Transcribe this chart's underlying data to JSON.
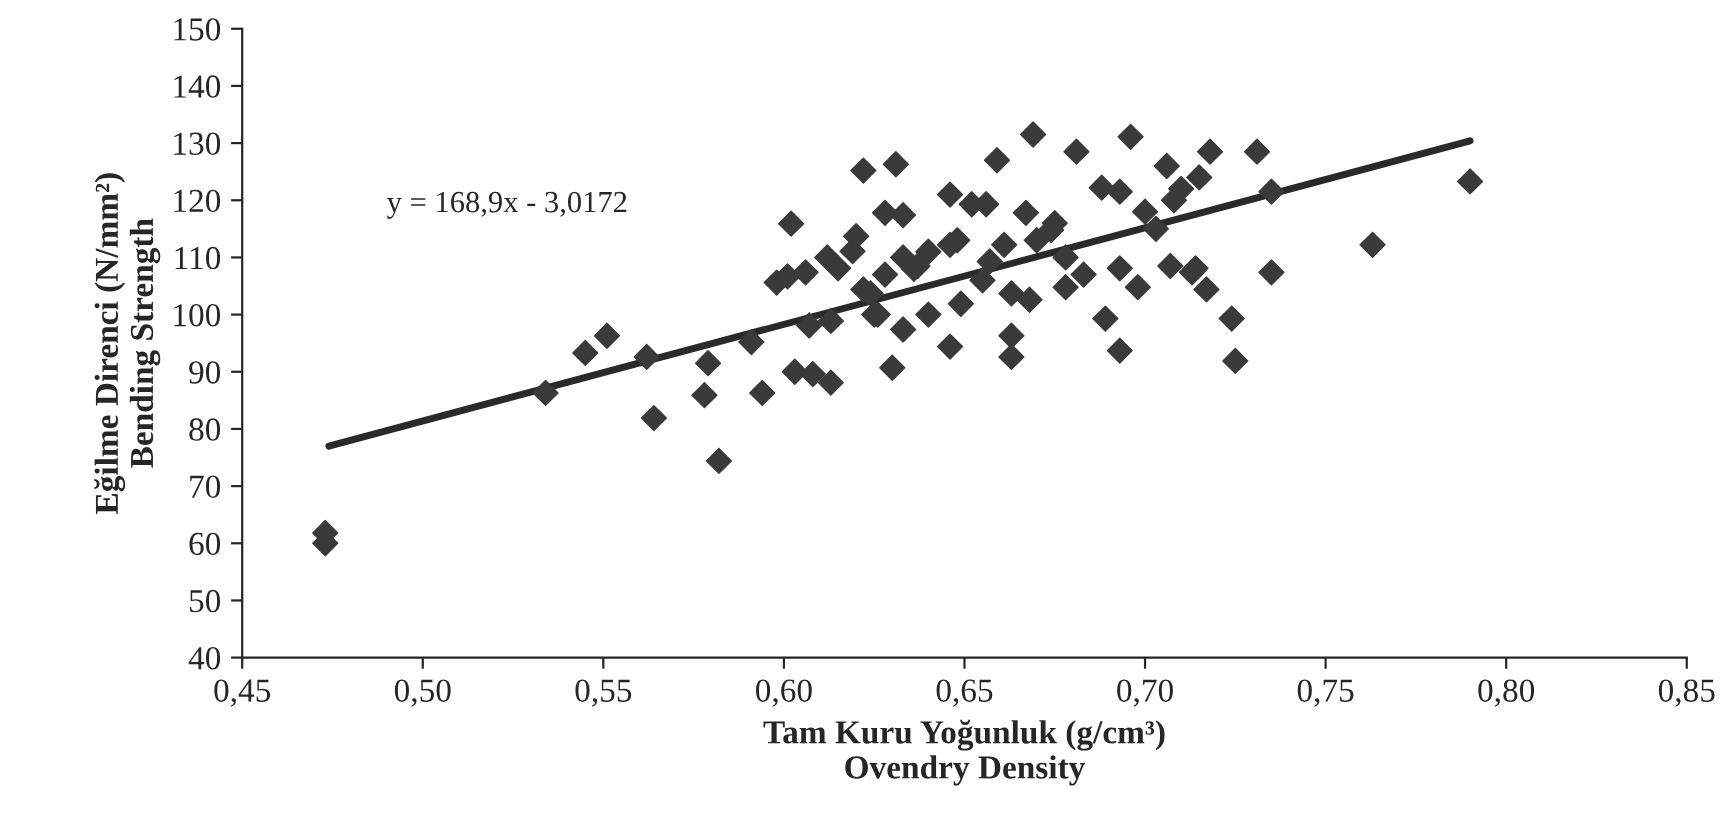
{
  "chart_data": {
    "type": "scatter",
    "xlabel": "Tam Kuru Yoğunluk (g/cm³)\nOvendry Density",
    "ylabel": "Eğilme Direnci (N/mm²)\nBending Strength",
    "annotations": [
      "y = 168,9x - 3,0172"
    ],
    "grid": false,
    "legend": false,
    "xlim": [
      0.45,
      0.85
    ],
    "xticks": [
      {
        "value": 0.45,
        "label": "0,45"
      },
      {
        "value": 0.5,
        "label": "0,50"
      },
      {
        "value": 0.55,
        "label": "0,55"
      },
      {
        "value": 0.6,
        "label": "0,60"
      },
      {
        "value": 0.65,
        "label": "0,65"
      },
      {
        "value": 0.7,
        "label": "0,70"
      },
      {
        "value": 0.75,
        "label": "0,75"
      },
      {
        "value": 0.8,
        "label": "0,80"
      },
      {
        "value": 0.85,
        "label": "0,85"
      }
    ],
    "ylim": [
      40,
      150
    ],
    "yticks": [
      40,
      50,
      60,
      70,
      80,
      90,
      100,
      110,
      120,
      130,
      140,
      150
    ],
    "series": [
      {
        "marker": "diamond",
        "color": "#3a3a3a",
        "x": [
          0.473,
          0.473,
          0.534,
          0.545,
          0.551,
          0.562,
          0.564,
          0.579,
          0.578,
          0.582,
          0.591,
          0.594,
          0.602,
          0.598,
          0.601,
          0.606,
          0.612,
          0.615,
          0.607,
          0.613,
          0.603,
          0.608,
          0.613,
          0.619,
          0.625,
          0.624,
          0.622,
          0.631,
          0.669,
          0.696,
          0.659,
          0.681,
          0.646,
          0.652,
          0.656,
          0.667,
          0.688,
          0.693,
          0.706,
          0.71,
          0.715,
          0.628,
          0.633,
          0.62,
          0.633,
          0.637,
          0.646,
          0.661,
          0.674,
          0.678,
          0.657,
          0.622,
          0.626,
          0.633,
          0.64,
          0.649,
          0.646,
          0.663,
          0.668,
          0.663,
          0.663,
          0.678,
          0.689,
          0.693,
          0.693,
          0.698,
          0.707,
          0.713,
          0.63,
          0.718,
          0.731,
          0.735,
          0.79,
          0.763,
          0.735,
          0.717,
          0.724,
          0.725,
          0.714,
          0.636,
          0.64,
          0.628,
          0.655,
          0.67,
          0.675,
          0.7,
          0.703,
          0.708,
          0.683,
          0.648
        ],
        "values": [
          60,
          61.8,
          86.3,
          93.3,
          96.3,
          92.6,
          81.9,
          91.5,
          85.9,
          74.4,
          95.2,
          86.3,
          115.9,
          105.6,
          106.7,
          107.4,
          110,
          108.1,
          98.1,
          98.9,
          90,
          89.6,
          88.1,
          111.1,
          100,
          103.7,
          125.2,
          126.3,
          131.5,
          131.1,
          127,
          128.5,
          121,
          119.3,
          119.3,
          117.8,
          122.2,
          121.5,
          126,
          122,
          124,
          117.8,
          117.4,
          113.7,
          110,
          108.5,
          112.2,
          112.2,
          114.8,
          110,
          109.3,
          104.4,
          100,
          97.4,
          100,
          101.9,
          94.4,
          103.7,
          102.6,
          96.3,
          92.6,
          104.8,
          99.3,
          93.7,
          108.1,
          104.8,
          108.5,
          107.4,
          90.7,
          128.5,
          128.5,
          121.5,
          123.3,
          112.2,
          107.4,
          104.4,
          99.3,
          91.9,
          108.1,
          108,
          111,
          107,
          106,
          113,
          116,
          118,
          115,
          120,
          107,
          113
        ]
      },
      {
        "type": "line",
        "marker": "none",
        "color": "#2a2a2a",
        "x": [
          0.474,
          0.79
        ],
        "values": [
          77,
          130.4
        ]
      }
    ]
  }
}
